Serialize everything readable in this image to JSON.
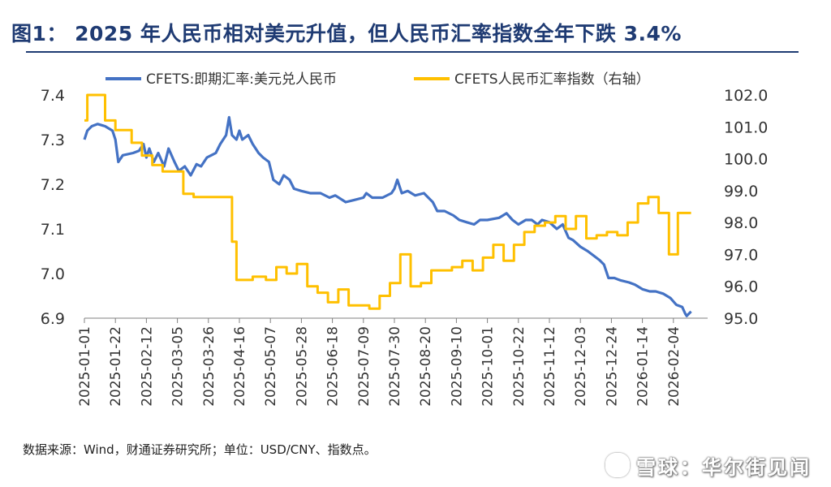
{
  "header": {
    "title": "图1： 2025 年人民币相对美元升值，但人民币汇率指数全年下跌 3.4%"
  },
  "footer": {
    "source": "数据来源：Wind，财通证券研究所；单位：USD/CNY、指数点。",
    "watermark": "雪球：华尔街见闻"
  },
  "colors": {
    "title": "#1f3b73",
    "series_usdcny": "#4472c4",
    "series_index": "#ffc000",
    "axis": "#808080"
  },
  "chart_data": {
    "type": "line",
    "x_tick_labels": [
      "2025-01-01",
      "2025-01-22",
      "2025-02-12",
      "2025-03-05",
      "2025-03-26",
      "2025-04-16",
      "2025-05-07",
      "2025-05-28",
      "2025-06-18",
      "2025-07-09",
      "2025-07-30",
      "2025-08-20",
      "2025-09-10",
      "2025-10-01",
      "2025-10-22",
      "2025-11-12",
      "2025-12-03",
      "2025-12-24",
      "2026-01-14",
      "2026-02-04"
    ],
    "x_range": [
      "2025-01-01",
      "2026-02-20"
    ],
    "y_left": {
      "ticks": [
        "6.9",
        "7.0",
        "7.1",
        "7.2",
        "7.3",
        "7.4"
      ],
      "range": [
        6.9,
        7.4
      ]
    },
    "y_right": {
      "ticks": [
        "95.0",
        "96.0",
        "97.0",
        "98.0",
        "99.0",
        "100.0",
        "101.0",
        "102.0"
      ],
      "range": [
        95.0,
        102.0
      ]
    },
    "legend_position": "top",
    "grid": false,
    "series": [
      {
        "name": "CFETS:即期汇率:美元兑人民币",
        "axis": "left",
        "step": false,
        "points": [
          [
            "2025-01-01",
            7.3
          ],
          [
            "2025-01-03",
            7.32
          ],
          [
            "2025-01-06",
            7.33
          ],
          [
            "2025-01-10",
            7.335
          ],
          [
            "2025-01-15",
            7.33
          ],
          [
            "2025-01-20",
            7.32
          ],
          [
            "2025-01-22",
            7.3
          ],
          [
            "2025-01-24",
            7.25
          ],
          [
            "2025-01-27",
            7.265
          ],
          [
            "2025-02-03",
            7.27
          ],
          [
            "2025-02-07",
            7.275
          ],
          [
            "2025-02-10",
            7.29
          ],
          [
            "2025-02-12",
            7.26
          ],
          [
            "2025-02-14",
            7.28
          ],
          [
            "2025-02-17",
            7.25
          ],
          [
            "2025-02-20",
            7.27
          ],
          [
            "2025-02-24",
            7.24
          ],
          [
            "2025-02-27",
            7.28
          ],
          [
            "2025-03-03",
            7.25
          ],
          [
            "2025-03-06",
            7.23
          ],
          [
            "2025-03-10",
            7.24
          ],
          [
            "2025-03-14",
            7.22
          ],
          [
            "2025-03-18",
            7.245
          ],
          [
            "2025-03-21",
            7.24
          ],
          [
            "2025-03-25",
            7.26
          ],
          [
            "2025-03-28",
            7.265
          ],
          [
            "2025-03-31",
            7.27
          ],
          [
            "2025-04-03",
            7.29
          ],
          [
            "2025-04-07",
            7.31
          ],
          [
            "2025-04-09",
            7.35
          ],
          [
            "2025-04-11",
            7.31
          ],
          [
            "2025-04-14",
            7.3
          ],
          [
            "2025-04-16",
            7.32
          ],
          [
            "2025-04-18",
            7.3
          ],
          [
            "2025-04-22",
            7.31
          ],
          [
            "2025-04-25",
            7.29
          ],
          [
            "2025-04-29",
            7.27
          ],
          [
            "2025-05-02",
            7.26
          ],
          [
            "2025-05-06",
            7.25
          ],
          [
            "2025-05-09",
            7.21
          ],
          [
            "2025-05-13",
            7.2
          ],
          [
            "2025-05-16",
            7.22
          ],
          [
            "2025-05-20",
            7.21
          ],
          [
            "2025-05-23",
            7.19
          ],
          [
            "2025-05-28",
            7.185
          ],
          [
            "2025-06-03",
            7.18
          ],
          [
            "2025-06-10",
            7.18
          ],
          [
            "2025-06-16",
            7.17
          ],
          [
            "2025-06-20",
            7.175
          ],
          [
            "2025-06-27",
            7.16
          ],
          [
            "2025-07-03",
            7.165
          ],
          [
            "2025-07-09",
            7.17
          ],
          [
            "2025-07-11",
            7.18
          ],
          [
            "2025-07-15",
            7.17
          ],
          [
            "2025-07-22",
            7.17
          ],
          [
            "2025-07-28",
            7.18
          ],
          [
            "2025-07-30",
            7.19
          ],
          [
            "2025-08-01",
            7.21
          ],
          [
            "2025-08-04",
            7.18
          ],
          [
            "2025-08-08",
            7.185
          ],
          [
            "2025-08-13",
            7.175
          ],
          [
            "2025-08-19",
            7.18
          ],
          [
            "2025-08-22",
            7.17
          ],
          [
            "2025-08-25",
            7.16
          ],
          [
            "2025-08-28",
            7.14
          ],
          [
            "2025-09-02",
            7.14
          ],
          [
            "2025-09-08",
            7.13
          ],
          [
            "2025-09-12",
            7.12
          ],
          [
            "2025-09-17",
            7.115
          ],
          [
            "2025-09-22",
            7.11
          ],
          [
            "2025-09-26",
            7.12
          ],
          [
            "2025-10-01",
            7.12
          ],
          [
            "2025-10-09",
            7.125
          ],
          [
            "2025-10-14",
            7.135
          ],
          [
            "2025-10-18",
            7.12
          ],
          [
            "2025-10-22",
            7.11
          ],
          [
            "2025-10-27",
            7.12
          ],
          [
            "2025-10-31",
            7.12
          ],
          [
            "2025-11-04",
            7.11
          ],
          [
            "2025-11-07",
            7.12
          ],
          [
            "2025-11-12",
            7.115
          ],
          [
            "2025-11-17",
            7.1
          ],
          [
            "2025-11-21",
            7.11
          ],
          [
            "2025-11-25",
            7.08
          ],
          [
            "2025-11-28",
            7.075
          ],
          [
            "2025-12-03",
            7.06
          ],
          [
            "2025-12-08",
            7.05
          ],
          [
            "2025-12-12",
            7.04
          ],
          [
            "2025-12-16",
            7.03
          ],
          [
            "2025-12-19",
            7.02
          ],
          [
            "2025-12-22",
            6.99
          ],
          [
            "2025-12-26",
            6.99
          ],
          [
            "2025-12-30",
            6.985
          ],
          [
            "2026-01-05",
            6.98
          ],
          [
            "2026-01-09",
            6.975
          ],
          [
            "2026-01-14",
            6.965
          ],
          [
            "2026-01-19",
            6.96
          ],
          [
            "2026-01-23",
            6.96
          ],
          [
            "2026-01-28",
            6.955
          ],
          [
            "2026-02-02",
            6.945
          ],
          [
            "2026-02-06",
            6.93
          ],
          [
            "2026-02-10",
            6.925
          ],
          [
            "2026-02-12",
            6.91
          ],
          [
            "2026-02-13",
            6.905
          ],
          [
            "2026-02-16",
            6.915
          ]
        ]
      },
      {
        "name": "CFETS人民币汇率指数（右轴）",
        "axis": "right",
        "step": true,
        "points": [
          [
            "2025-01-01",
            101.2
          ],
          [
            "2025-01-03",
            102.0
          ],
          [
            "2025-01-15",
            101.2
          ],
          [
            "2025-01-22",
            100.9
          ],
          [
            "2025-02-02",
            100.5
          ],
          [
            "2025-02-09",
            100.1
          ],
          [
            "2025-02-16",
            99.8
          ],
          [
            "2025-02-23",
            99.6
          ],
          [
            "2025-03-09",
            98.9
          ],
          [
            "2025-03-16",
            98.8
          ],
          [
            "2025-03-30",
            98.8
          ],
          [
            "2025-04-11",
            97.4
          ],
          [
            "2025-04-14",
            96.2
          ],
          [
            "2025-04-25",
            96.3
          ],
          [
            "2025-05-04",
            96.2
          ],
          [
            "2025-05-11",
            96.6
          ],
          [
            "2025-05-18",
            96.4
          ],
          [
            "2025-05-25",
            96.7
          ],
          [
            "2025-06-01",
            96.0
          ],
          [
            "2025-06-08",
            95.8
          ],
          [
            "2025-06-15",
            95.5
          ],
          [
            "2025-06-22",
            95.9
          ],
          [
            "2025-06-29",
            95.4
          ],
          [
            "2025-07-13",
            95.3
          ],
          [
            "2025-07-20",
            95.7
          ],
          [
            "2025-07-27",
            96.1
          ],
          [
            "2025-08-03",
            97.0
          ],
          [
            "2025-08-10",
            96.0
          ],
          [
            "2025-08-17",
            96.1
          ],
          [
            "2025-08-24",
            96.5
          ],
          [
            "2025-09-07",
            96.6
          ],
          [
            "2025-09-14",
            96.8
          ],
          [
            "2025-09-21",
            96.5
          ],
          [
            "2025-09-28",
            96.9
          ],
          [
            "2025-10-05",
            97.3
          ],
          [
            "2025-10-12",
            96.8
          ],
          [
            "2025-10-19",
            97.3
          ],
          [
            "2025-10-26",
            97.7
          ],
          [
            "2025-11-02",
            97.9
          ],
          [
            "2025-11-09",
            98.0
          ],
          [
            "2025-11-16",
            98.2
          ],
          [
            "2025-11-23",
            97.8
          ],
          [
            "2025-11-30",
            98.2
          ],
          [
            "2025-12-07",
            97.5
          ],
          [
            "2025-12-14",
            97.6
          ],
          [
            "2025-12-21",
            97.7
          ],
          [
            "2025-12-28",
            97.6
          ],
          [
            "2026-01-04",
            98.0
          ],
          [
            "2026-01-11",
            98.6
          ],
          [
            "2026-01-18",
            98.8
          ],
          [
            "2026-01-25",
            98.3
          ],
          [
            "2026-02-01",
            97.0
          ],
          [
            "2026-02-07",
            98.3
          ],
          [
            "2026-02-16",
            98.3
          ]
        ]
      }
    ]
  }
}
